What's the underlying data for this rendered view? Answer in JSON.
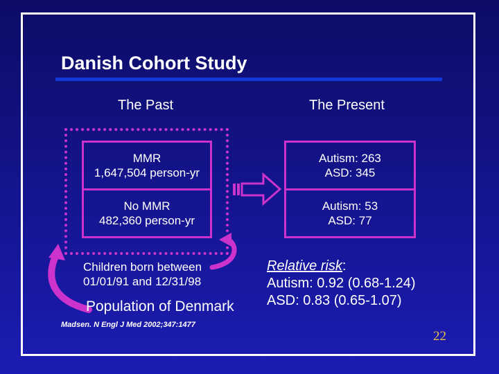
{
  "title": "Danish Cohort Study",
  "columns": {
    "past": "The Past",
    "present": "The Present"
  },
  "past_boxes": [
    {
      "line1": "MMR",
      "line2": "1,647,504 person-yr"
    },
    {
      "line1": "No MMR",
      "line2": "482,360 person-yr"
    }
  ],
  "present_boxes": [
    {
      "line1": "Autism: 263",
      "line2": "ASD: 345"
    },
    {
      "line1": "Autism: 53",
      "line2": "ASD: 77"
    }
  ],
  "children_born": {
    "line1": "Children born between",
    "line2": "01/01/91 and 12/31/98"
  },
  "population": "Population of Denmark",
  "relative_risk": {
    "label": "Relative risk",
    "colon": ":",
    "autism": "Autism: 0.92 (0.68-1.24)",
    "asd": "ASD: 0.83 (0.65-1.07)"
  },
  "citation": "Madsen. N Engl J Med 2002;347:1477",
  "page_number": "22",
  "colors": {
    "accent": "#cc33cc",
    "rule": "#1238d8",
    "page_number": "#e8c240"
  }
}
